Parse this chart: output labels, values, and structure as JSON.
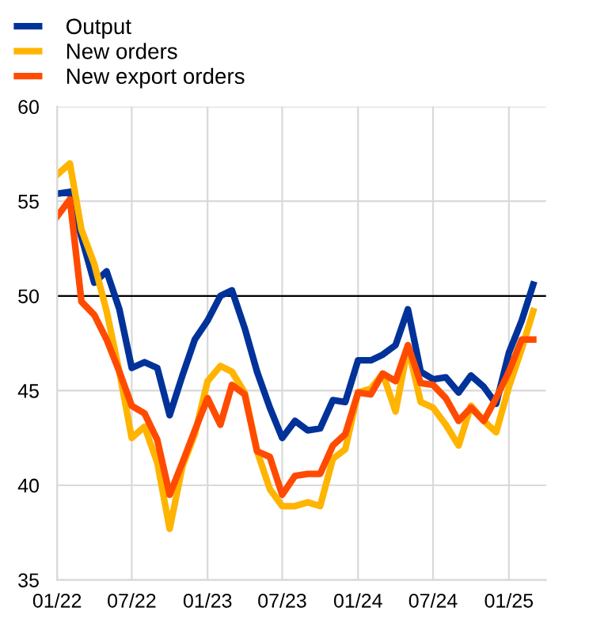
{
  "chart_data": {
    "type": "line",
    "x": [
      "2022-01",
      "2022-02",
      "2022-03",
      "2022-04",
      "2022-05",
      "2022-06",
      "2022-07",
      "2022-08",
      "2022-09",
      "2022-10",
      "2022-11",
      "2022-12",
      "2023-01",
      "2023-02",
      "2023-03",
      "2023-04",
      "2023-05",
      "2023-06",
      "2023-07",
      "2023-08",
      "2023-09",
      "2023-10",
      "2023-11",
      "2023-12",
      "2024-01",
      "2024-02",
      "2024-03",
      "2024-04",
      "2024-05",
      "2024-06",
      "2024-07",
      "2024-08",
      "2024-09",
      "2024-10",
      "2024-11",
      "2024-12",
      "2025-01",
      "2025-02",
      "2025-03"
    ],
    "series": [
      {
        "name": "Output",
        "color": "#003299",
        "values": [
          55.4,
          55.5,
          53.1,
          50.7,
          51.3,
          49.3,
          46.2,
          46.5,
          46.2,
          43.7,
          45.8,
          47.7,
          48.7,
          50.0,
          50.3,
          48.3,
          46.0,
          44.1,
          42.5,
          43.4,
          42.9,
          43.0,
          44.5,
          44.4,
          46.6,
          46.6,
          46.9,
          47.4,
          49.3,
          46.0,
          45.6,
          45.7,
          44.9,
          45.8,
          45.2,
          44.3,
          47.0,
          48.7,
          50.6
        ]
      },
      {
        "name": "New orders",
        "color": "#ffb400",
        "values": [
          56.4,
          57.0,
          53.5,
          51.7,
          49.2,
          46.0,
          42.5,
          43.1,
          41.2,
          37.7,
          41.0,
          42.7,
          45.5,
          46.3,
          46.0,
          44.9,
          41.8,
          39.8,
          38.9,
          38.9,
          39.1,
          38.9,
          41.4,
          41.9,
          44.9,
          45.1,
          45.9,
          43.9,
          47.3,
          44.4,
          44.1,
          43.2,
          42.1,
          44.2,
          43.4,
          42.8,
          45.2,
          47.2,
          49.2
        ]
      },
      {
        "name": "New export orders",
        "color": "#ff4b00",
        "values": [
          54.2,
          55.1,
          49.7,
          49.0,
          47.7,
          46.0,
          44.2,
          43.8,
          42.4,
          39.5,
          41.2,
          42.9,
          44.6,
          43.2,
          45.3,
          44.8,
          41.8,
          41.5,
          39.5,
          40.5,
          40.6,
          40.6,
          42.1,
          42.7,
          44.9,
          44.8,
          45.9,
          45.5,
          47.4,
          45.4,
          45.3,
          44.6,
          43.4,
          44.1,
          43.4,
          44.6,
          46.0,
          47.7,
          47.7
        ]
      }
    ],
    "xlim": [
      "2022-01",
      "2025-04"
    ],
    "xticks": [
      {
        "value": "2022-01",
        "label": "01/22"
      },
      {
        "value": "2022-07",
        "label": "07/22"
      },
      {
        "value": "2023-01",
        "label": "01/23"
      },
      {
        "value": "2023-07",
        "label": "07/23"
      },
      {
        "value": "2024-01",
        "label": "01/24"
      },
      {
        "value": "2024-07",
        "label": "07/24"
      },
      {
        "value": "2025-01",
        "label": "01/25"
      }
    ],
    "ylim": [
      35,
      60
    ],
    "yticks": [
      35,
      40,
      45,
      50,
      55,
      60
    ],
    "ref_lines": [
      {
        "axis": "y",
        "value": 50,
        "color": "#000000"
      }
    ],
    "grid": true,
    "legend": "top left",
    "line_style": "solid",
    "marker": "none"
  }
}
